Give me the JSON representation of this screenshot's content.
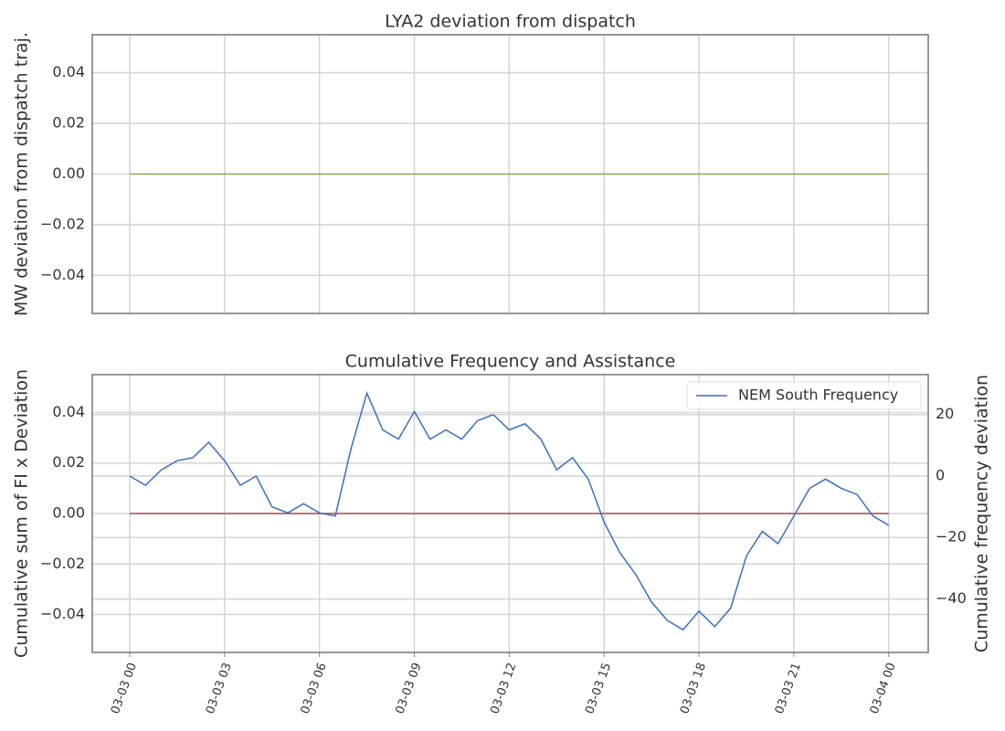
{
  "chart_data": [
    {
      "type": "line",
      "title": "LYA2 deviation from dispatch",
      "y_label": "MW deviation from dispatch traj.",
      "xlim": [
        "03-02 22:49",
        "03-04 01:15"
      ],
      "ylim": [
        -0.055,
        0.055
      ],
      "yticks": [
        {
          "value": -0.04,
          "label": "−0.04"
        },
        {
          "value": -0.02,
          "label": "−0.02"
        },
        {
          "value": 0,
          "label": "0.00"
        },
        0.02,
        0.04
      ],
      "grid": true,
      "series": [
        {
          "color": "#8aab62",
          "x": [
            "03-03 00:00",
            "03-04 00:00"
          ],
          "values": [
            0,
            0
          ]
        }
      ]
    },
    {
      "type": "line",
      "title": "Cumulative Frequency and Assistance",
      "y_label": "Cumulative sum of FI x Deviation",
      "y2_label": "Cumulative frequency deviation",
      "xlim": [
        "03-02 22:49",
        "03-04 01:15"
      ],
      "xticks": [
        "03-03 00",
        "03-03 03",
        "03-03 06",
        "03-03 09",
        "03-03 12",
        "03-03 15",
        "03-03 18",
        "03-03 21",
        "03-04 00"
      ],
      "ylim": [
        -0.055,
        0.055
      ],
      "yticks": [
        {
          "value": -0.04,
          "label": "−0.04"
        },
        {
          "value": -0.02,
          "label": "−0.02"
        },
        {
          "value": 0,
          "label": "0.00"
        },
        0.02,
        0.04
      ],
      "y2lim": [
        -57.4,
        33
      ],
      "y2ticks": [
        {
          "value": -40,
          "label": "−40"
        },
        {
          "value": -20,
          "label": "−20"
        },
        0,
        20
      ],
      "grid": true,
      "legend": "upper right",
      "series": [
        {
          "color": "#b04a4a",
          "x": [
            "03-03 00:00",
            "03-04 00:00"
          ],
          "values": [
            0,
            0
          ]
        },
        {
          "name": "NEM South Frequency",
          "color": "#3a6fc4",
          "axis": "y2",
          "x": [
            "03-03 00:00",
            "03-03 00:30",
            "03-03 01:00",
            "03-03 01:30",
            "03-03 02:00",
            "03-03 02:30",
            "03-03 03:00",
            "03-03 03:30",
            "03-03 04:00",
            "03-03 04:30",
            "03-03 05:00",
            "03-03 05:30",
            "03-03 06:00",
            "03-03 06:30",
            "03-03 07:00",
            "03-03 07:30",
            "03-03 08:00",
            "03-03 08:30",
            "03-03 09:00",
            "03-03 09:30",
            "03-03 10:00",
            "03-03 10:30",
            "03-03 11:00",
            "03-03 11:30",
            "03-03 12:00",
            "03-03 12:30",
            "03-03 13:00",
            "03-03 13:30",
            "03-03 14:00",
            "03-03 14:30",
            "03-03 15:00",
            "03-03 15:30",
            "03-03 16:00",
            "03-03 16:30",
            "03-03 17:00",
            "03-03 17:30",
            "03-03 18:00",
            "03-03 18:30",
            "03-03 19:00",
            "03-03 19:30",
            "03-03 20:00",
            "03-03 20:30",
            "03-03 21:00",
            "03-03 21:30",
            "03-03 22:00",
            "03-03 22:30",
            "03-03 23:00",
            "03-03 23:30",
            "03-04 00:00"
          ],
          "values": [
            0,
            -3,
            2,
            5,
            6,
            11,
            5,
            -3,
            0,
            -10,
            -12,
            -9,
            -12,
            -13,
            9,
            27,
            15,
            12,
            21,
            12,
            15,
            12,
            18,
            20,
            15,
            17,
            12,
            2,
            6,
            -1,
            -15,
            -25,
            -32,
            -41,
            -47,
            -50,
            -44,
            -49,
            -43,
            -26,
            -18,
            -22,
            -13,
            -4,
            -1,
            -4,
            -6,
            -13,
            -16
          ]
        }
      ]
    }
  ]
}
